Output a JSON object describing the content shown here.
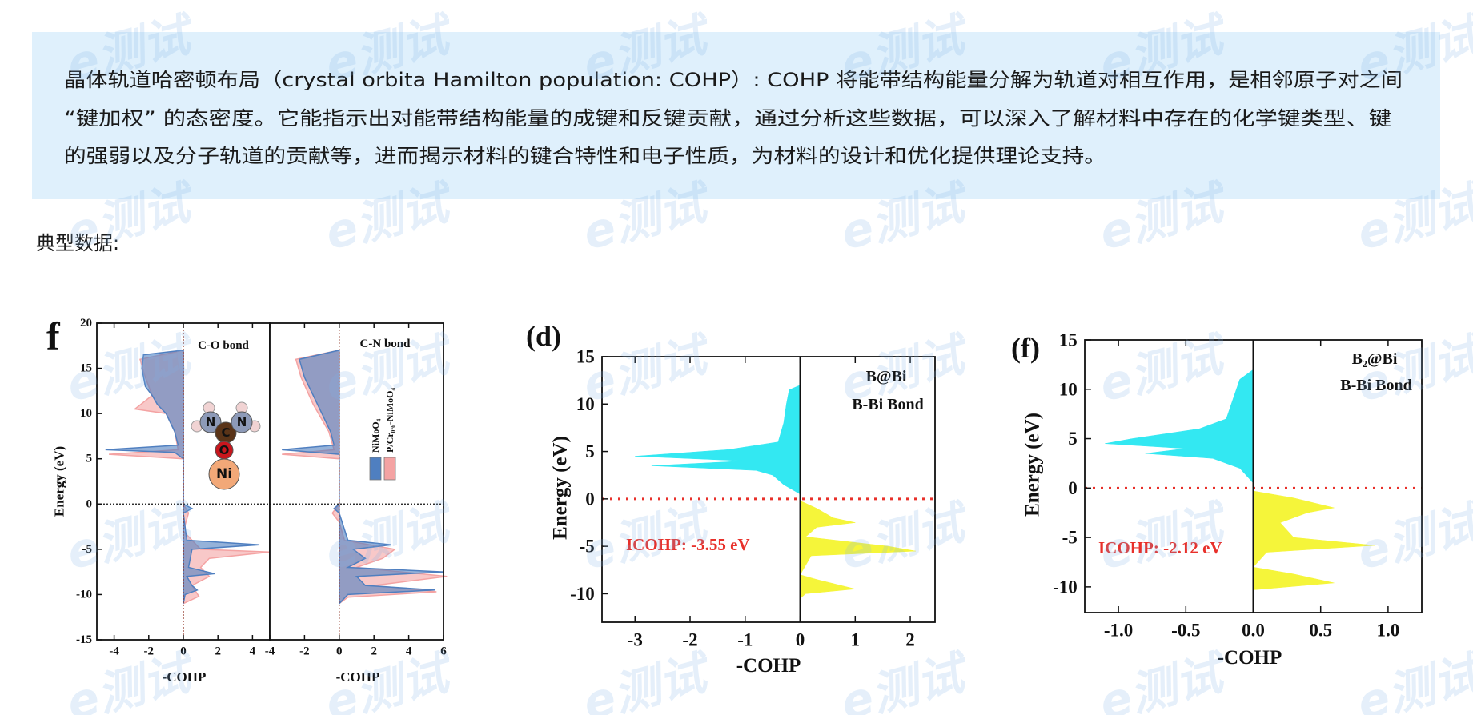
{
  "watermark": "e测试",
  "description": {
    "lines": [
      "晶体轨道哈密顿布局（crystal orbita Hamilton population: COHP）: COHP 将能带结构能量分解为轨道对相互作用，是相邻原子对之间",
      "“键加权” 的态密度。它能指示出对能带结构能量的成键和反键贡献，通过分析这些数据，可以深入了解材料中存在的化学键类型、键",
      "的强弱以及分子轨道的贡献等，进而揭示材料的键合特性和电子性质，为材料的设计和优化提供理论支持。"
    ]
  },
  "section_label": "典型数据:",
  "chart_data": [
    {
      "type": "area",
      "panel_label": "f",
      "title": "C-O bond",
      "xlabel": "-COHP",
      "ylabel": "Energy (eV)",
      "atom_labels": [
        "N",
        "C",
        "N",
        "O",
        "Ni"
      ],
      "xlim": [
        -5,
        5
      ],
      "xticks": [
        -4,
        -2,
        0,
        2,
        4
      ],
      "ylim": [
        -15,
        20
      ],
      "yticks": [
        -15,
        -10,
        -5,
        0,
        5,
        10,
        15,
        20
      ],
      "series": [
        {
          "color": "#f4a3a3",
          "energy": [
            17,
            16,
            14,
            12,
            10.5,
            10,
            8,
            6,
            5.5,
            5,
            0,
            -1,
            -3,
            -5,
            -5.3,
            -6,
            -7,
            -8,
            -9,
            -10.2,
            -11
          ],
          "values": [
            0,
            -2.5,
            -2.2,
            -1.8,
            -2.8,
            -1,
            -0.5,
            -0.3,
            -4.3,
            0,
            0,
            0.3,
            0,
            1,
            5,
            1.5,
            1,
            1.5,
            0.5,
            0.9,
            0
          ]
        },
        {
          "color": "#4f7fc0",
          "energy": [
            17,
            16.5,
            15,
            13,
            12,
            11,
            10,
            8,
            6.5,
            6,
            5.7,
            5,
            0,
            -0.5,
            -1,
            -4,
            -4.5,
            -5,
            -7,
            -7.7,
            -8,
            -9,
            -9.5,
            -10,
            -11
          ],
          "values": [
            0,
            -2.3,
            -2.4,
            -2.2,
            -1.8,
            -1.5,
            -1,
            -0.5,
            -0.3,
            -4.5,
            -0.5,
            0,
            0,
            0.5,
            0,
            0.2,
            4.4,
            0.5,
            0.3,
            1.8,
            0.2,
            0.5,
            0.8,
            0.1,
            0
          ]
        }
      ]
    },
    {
      "type": "area",
      "title": "C-N bond",
      "xlabel": "-COHP",
      "xlim": [
        -4,
        6
      ],
      "xticks": [
        -4,
        -2,
        0,
        2,
        4,
        6
      ],
      "ylim": [
        -15,
        20
      ],
      "series": [
        {
          "name": "P/Cr₀.₆-NiMoO₄",
          "color": "#f4a3a3",
          "energy": [
            17,
            16,
            14,
            11,
            8,
            6,
            5.5,
            5,
            0,
            -1,
            -2,
            -4,
            -5,
            -6,
            -7,
            -8,
            -9,
            -9.7,
            -10.3,
            -11
          ],
          "values": [
            0,
            -2.5,
            -2.2,
            -1.5,
            -0.6,
            -0.3,
            -3.3,
            0,
            0,
            -0.4,
            0,
            0.3,
            3.2,
            2.5,
            1,
            6.2,
            2,
            5.6,
            0.5,
            0
          ]
        },
        {
          "name": "NiMoO₄",
          "color": "#4f7fc0",
          "energy": [
            17,
            16,
            14,
            12,
            10,
            8,
            6.5,
            6,
            5.5,
            0,
            -0.5,
            -1,
            -4,
            -4.5,
            -5,
            -6,
            -7,
            -7.5,
            -8,
            -9,
            -9.5,
            -10,
            -11
          ],
          "values": [
            0,
            -2.3,
            -2,
            -1.5,
            -1,
            -0.5,
            -0.3,
            -3.3,
            0,
            0,
            -0.3,
            0,
            0.5,
            3,
            0.8,
            1.5,
            0.5,
            6,
            1,
            1.5,
            5.5,
            0.5,
            0
          ]
        }
      ]
    },
    {
      "type": "area",
      "panel_label": "(d)",
      "xlabel": "-COHP",
      "ylabel": "Energy (eV)",
      "annotations": [
        {
          "text": "B@Bi",
          "color": "#111111"
        },
        {
          "text": "B-Bi Bond",
          "color": "#111111"
        },
        {
          "text": "ICOHP: -3.55 eV",
          "color": "#e8302a"
        }
      ],
      "zero_line_color": "#e8302a",
      "xlim": [
        -3.6,
        2.45
      ],
      "xticks": [
        -3,
        -2,
        -1,
        0,
        1,
        2
      ],
      "ylim": [
        -13,
        15
      ],
      "yticks": [
        -10,
        -5,
        0,
        5,
        10,
        15
      ],
      "series": [
        {
          "color": "#33e8f2",
          "energy": [
            12,
            11.5,
            10,
            8,
            6,
            5.2,
            4.5,
            4,
            3.5,
            3,
            2.5,
            1.5,
            0.5
          ],
          "values": [
            0,
            -0.2,
            -0.25,
            -0.3,
            -0.4,
            -1.3,
            -3.0,
            -1.0,
            -2.7,
            -0.8,
            -0.5,
            -0.3,
            0
          ]
        },
        {
          "color": "#f5f53a",
          "energy": [
            -0.2,
            -1,
            -2,
            -2.5,
            -3,
            -4,
            -5,
            -5.5,
            -6,
            -8,
            -8.5,
            -9.5,
            -10,
            -10.5
          ],
          "values": [
            0,
            0.3,
            0.6,
            1.0,
            0.3,
            0.1,
            1.6,
            2.1,
            0.2,
            0,
            0.3,
            1.0,
            0.1,
            0
          ]
        }
      ]
    },
    {
      "type": "area",
      "panel_label": "(f)",
      "xlabel": "-COHP",
      "ylabel": "Energy (eV)",
      "annotations": [
        {
          "text": "B₂@Bi",
          "color": "#111111"
        },
        {
          "text": "B-Bi Bond",
          "color": "#111111"
        },
        {
          "text": "ICOHP: -2.12 eV",
          "color": "#e8302a"
        }
      ],
      "zero_line_color": "#e8302a",
      "xlim": [
        -1.25,
        1.25
      ],
      "xticks": [
        {
          "value": -1,
          "label": "-1.0"
        },
        -0.5,
        {
          "value": 0,
          "label": "0.0"
        },
        0.5,
        {
          "value": 1,
          "label": "1.0"
        }
      ],
      "ylim": [
        -12.6,
        15
      ],
      "yticks": [
        -10,
        -5,
        0,
        5,
        10,
        15
      ],
      "series": [
        {
          "color": "#33e8f2",
          "energy": [
            12,
            11,
            9,
            7,
            6,
            5,
            4.5,
            4,
            3.5,
            3,
            2,
            0.5
          ],
          "values": [
            0,
            -0.1,
            -0.15,
            -0.2,
            -0.4,
            -0.9,
            -1.1,
            -0.5,
            -0.8,
            -0.3,
            -0.1,
            0
          ]
        },
        {
          "color": "#f5f53a",
          "energy": [
            -0.3,
            -1,
            -2,
            -2.5,
            -3.5,
            -5,
            -5.8,
            -6.5,
            -8,
            -8.7,
            -9.6,
            -10.3
          ],
          "values": [
            0,
            0.3,
            0.6,
            0.4,
            0.2,
            0.3,
            0.9,
            0.1,
            0,
            0.3,
            0.6,
            0
          ]
        }
      ]
    }
  ]
}
